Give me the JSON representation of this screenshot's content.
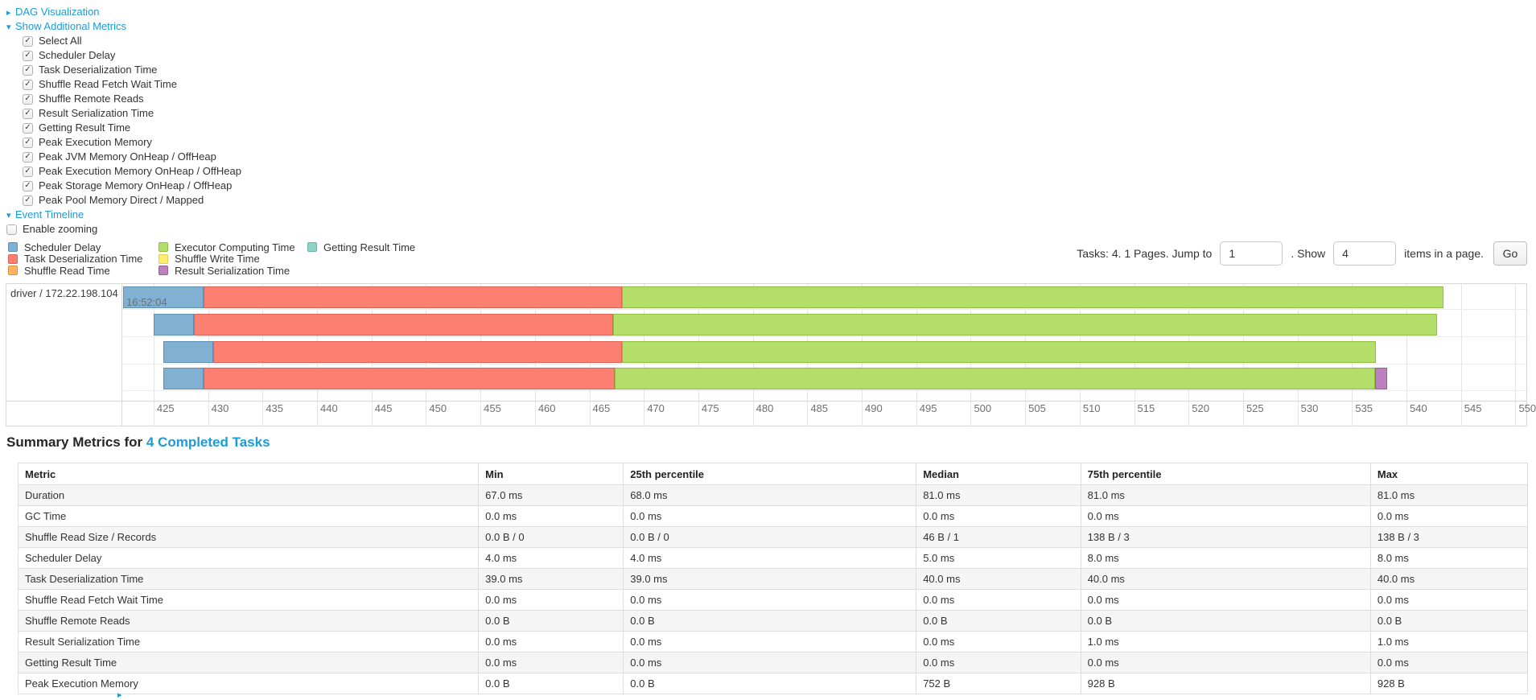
{
  "colors": {
    "link_blue": "#1b9cd6",
    "scheduler_delay": {
      "fill": "#80B1D3",
      "stroke": "#5E90B5"
    },
    "task_deserialization": {
      "fill": "#FB8072",
      "stroke": "#DD6355"
    },
    "shuffle_read": {
      "fill": "#FDB462",
      "stroke": "#DD9440"
    },
    "executor_computing": {
      "fill": "#B3DE69",
      "stroke": "#8FBE42"
    },
    "shuffle_write": {
      "fill": "#FFED6F",
      "stroke": "#E0CE4F"
    },
    "result_serialization": {
      "fill": "#BC80BD",
      "stroke": "#9A5E9B"
    },
    "getting_result": {
      "fill": "#8DD3C7",
      "stroke": "#69B3A6"
    }
  },
  "toggles": {
    "dag": {
      "label": "DAG Visualization",
      "arrow": "▸"
    },
    "metrics": {
      "label": "Show Additional Metrics",
      "arrow": "▾"
    },
    "timeline": {
      "label": "Event Timeline",
      "arrow": "▾"
    }
  },
  "metric_checkboxes": [
    {
      "label": "Select All",
      "checked": true
    },
    {
      "label": "Scheduler Delay",
      "checked": true
    },
    {
      "label": "Task Deserialization Time",
      "checked": true
    },
    {
      "label": "Shuffle Read Fetch Wait Time",
      "checked": true
    },
    {
      "label": "Shuffle Remote Reads",
      "checked": true
    },
    {
      "label": "Result Serialization Time",
      "checked": true
    },
    {
      "label": "Getting Result Time",
      "checked": true
    },
    {
      "label": "Peak Execution Memory",
      "checked": true
    },
    {
      "label": "Peak JVM Memory OnHeap / OffHeap",
      "checked": true
    },
    {
      "label": "Peak Execution Memory OnHeap / OffHeap",
      "checked": true
    },
    {
      "label": "Peak Storage Memory OnHeap / OffHeap",
      "checked": true
    },
    {
      "label": "Peak Pool Memory Direct / Mapped",
      "checked": true
    }
  ],
  "enable_zooming": {
    "label": "Enable zooming",
    "checked": false
  },
  "legend_columns": [
    [
      {
        "label": "Scheduler Delay",
        "key": "scheduler_delay"
      },
      {
        "label": "Task Deserialization Time",
        "key": "task_deserialization"
      },
      {
        "label": "Shuffle Read Time",
        "key": "shuffle_read"
      }
    ],
    [
      {
        "label": "Executor Computing Time",
        "key": "executor_computing"
      },
      {
        "label": "Shuffle Write Time",
        "key": "shuffle_write"
      },
      {
        "label": "Result Serialization Time",
        "key": "result_serialization"
      }
    ],
    [
      {
        "label": "Getting Result Time",
        "key": "getting_result"
      }
    ]
  ],
  "pagination": {
    "tasks_text": "Tasks: 4. 1 Pages. Jump to",
    "jump_value": "1",
    "show_text": ". Show",
    "show_value": "4",
    "items_text": "items in a page.",
    "go_label": "Go"
  },
  "chart_data": {
    "type": "timeline-gantt",
    "group_label": "driver / 172.22.198.104",
    "base_time_label": "16:52:04",
    "axis": {
      "units": "milliseconds after 16:52:04",
      "min": 422.2,
      "max": 551.0,
      "ticks": [
        425,
        430,
        435,
        440,
        445,
        450,
        455,
        460,
        465,
        470,
        475,
        480,
        485,
        490,
        495,
        500,
        505,
        510,
        515,
        520,
        525,
        530,
        535,
        540,
        545,
        550
      ]
    },
    "tasks": [
      {
        "segments": [
          [
            "scheduler_delay",
            422.2,
            429.6
          ],
          [
            "task_deserialization",
            429.6,
            468.0
          ],
          [
            "executor_computing",
            468.0,
            543.4
          ]
        ]
      },
      {
        "segments": [
          [
            "scheduler_delay",
            425.0,
            428.7
          ],
          [
            "task_deserialization",
            428.7,
            467.2
          ],
          [
            "executor_computing",
            467.2,
            542.8
          ]
        ]
      },
      {
        "segments": [
          [
            "scheduler_delay",
            425.9,
            430.5
          ],
          [
            "task_deserialization",
            430.5,
            468.0
          ],
          [
            "executor_computing",
            468.0,
            537.2
          ]
        ]
      },
      {
        "segments": [
          [
            "scheduler_delay",
            425.9,
            429.6
          ],
          [
            "task_deserialization",
            429.6,
            467.3
          ],
          [
            "executor_computing",
            467.3,
            537.1
          ],
          [
            "result_serialization",
            537.1,
            538.2
          ]
        ]
      }
    ]
  },
  "summary": {
    "title_prefix": "Summary Metrics for",
    "title_link": "4 Completed Tasks",
    "columns": [
      "Metric",
      "Min",
      "25th percentile",
      "Median",
      "75th percentile",
      "Max"
    ],
    "col_widths_pct": [
      30.5,
      9.6,
      19.4,
      10.9,
      19.2,
      10.4
    ],
    "rows": [
      [
        "Duration",
        "67.0 ms",
        "68.0 ms",
        "81.0 ms",
        "81.0 ms",
        "81.0 ms"
      ],
      [
        "GC Time",
        "0.0 ms",
        "0.0 ms",
        "0.0 ms",
        "0.0 ms",
        "0.0 ms"
      ],
      [
        "Shuffle Read Size / Records",
        "0.0 B / 0",
        "0.0 B / 0",
        "46 B / 1",
        "138 B / 3",
        "138 B / 3"
      ],
      [
        "Scheduler Delay",
        "4.0 ms",
        "4.0 ms",
        "5.0 ms",
        "8.0 ms",
        "8.0 ms"
      ],
      [
        "Task Deserialization Time",
        "39.0 ms",
        "39.0 ms",
        "40.0 ms",
        "40.0 ms",
        "40.0 ms"
      ],
      [
        "Shuffle Read Fetch Wait Time",
        "0.0 ms",
        "0.0 ms",
        "0.0 ms",
        "0.0 ms",
        "0.0 ms"
      ],
      [
        "Shuffle Remote Reads",
        "0.0 B",
        "0.0 B",
        "0.0 B",
        "0.0 B",
        "0.0 B"
      ],
      [
        "Result Serialization Time",
        "0.0 ms",
        "0.0 ms",
        "0.0 ms",
        "1.0 ms",
        "1.0 ms"
      ],
      [
        "Getting Result Time",
        "0.0 ms",
        "0.0 ms",
        "0.0 ms",
        "0.0 ms",
        "0.0 ms"
      ],
      [
        "Peak Execution Memory",
        "0.0 B",
        "0.0 B",
        "752 B",
        "928 B",
        "928 B"
      ]
    ]
  },
  "next_section_marker": "▸"
}
